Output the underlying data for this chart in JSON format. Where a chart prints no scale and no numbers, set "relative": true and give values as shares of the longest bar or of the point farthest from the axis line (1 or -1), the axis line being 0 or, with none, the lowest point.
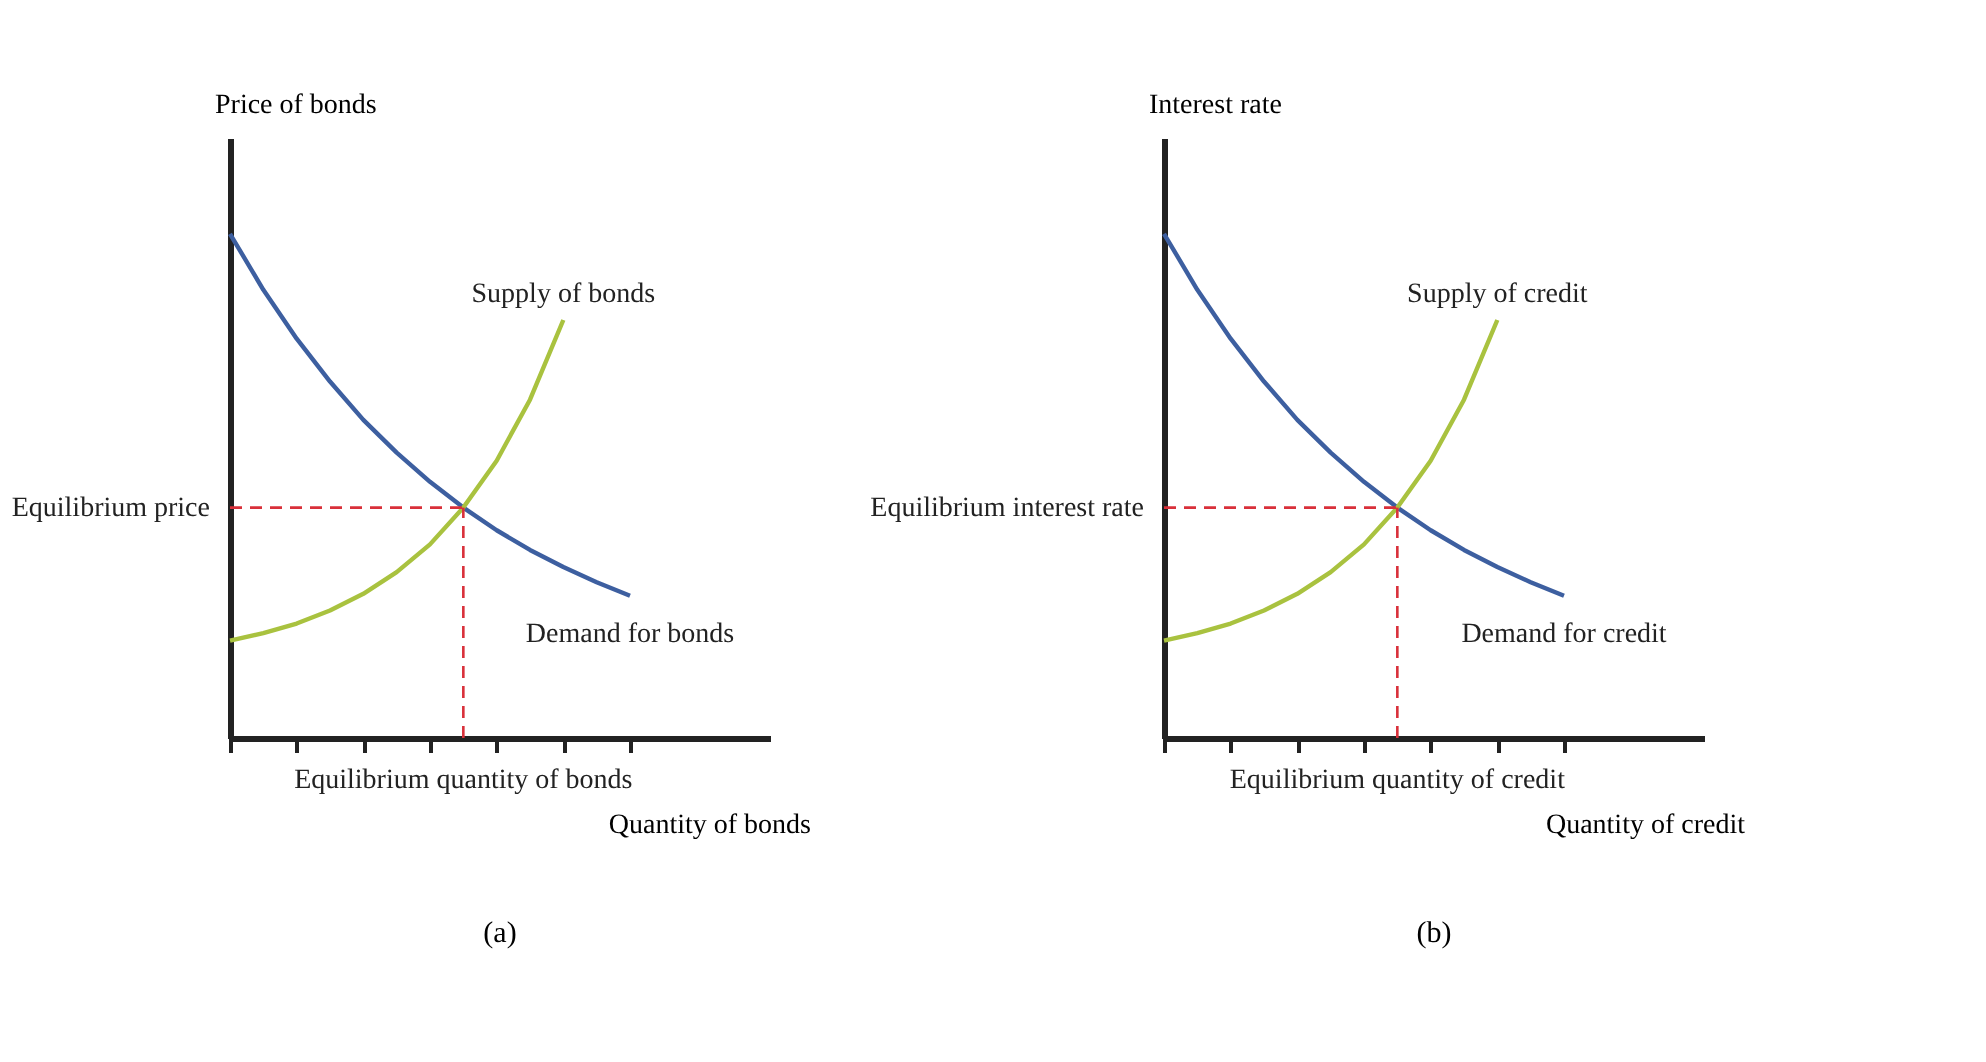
{
  "chart_data": [
    {
      "type": "line",
      "title": "(a)",
      "xlabel": "Quantity of bonds",
      "ylabel": "Price of bonds",
      "relative": true,
      "marker": "none",
      "categories": [
        null,
        null,
        null,
        null,
        null,
        null,
        null,
        null,
        null,
        null,
        null,
        null,
        null
      ],
      "series": [
        {
          "name": "Demand for bonds",
          "color": "#3d5fa0",
          "values": [
            1,
            0.889,
            0.792,
            0.707,
            0.631,
            0.566,
            0.508,
            0.457,
            0.412,
            0.373,
            0.339,
            0.309,
            0.282
          ]
        },
        {
          "name": "Supply of bonds",
          "color": "#a9c23f",
          "values": [
            0.193,
            0.208,
            0.227,
            0.253,
            0.286,
            0.329,
            0.384,
            0.457,
            0.55,
            0.671,
            0.829,
            null,
            null
          ]
        }
      ],
      "ref_lines": [
        {
          "axis": "y",
          "value": 0.457,
          "label": "Equilibrium price",
          "color": "#d9303a",
          "line_style": "dashed"
        }
      ],
      "annotations": [
        "Equilibrium quantity of bonds"
      ]
    },
    {
      "type": "line",
      "title": "(b)",
      "xlabel": "Quantity of credit",
      "ylabel": "Interest rate",
      "relative": true,
      "marker": "none",
      "categories": [
        null,
        null,
        null,
        null,
        null,
        null,
        null,
        null,
        null,
        null,
        null,
        null,
        null
      ],
      "series": [
        {
          "name": "Demand for credit",
          "color": "#3d5fa0",
          "values": [
            1,
            0.889,
            0.792,
            0.707,
            0.631,
            0.566,
            0.508,
            0.457,
            0.412,
            0.373,
            0.339,
            0.309,
            0.282
          ]
        },
        {
          "name": "Supply of credit",
          "color": "#a9c23f",
          "values": [
            0.193,
            0.208,
            0.227,
            0.253,
            0.286,
            0.329,
            0.384,
            0.457,
            0.55,
            0.671,
            0.829,
            null,
            null
          ]
        }
      ],
      "ref_lines": [
        {
          "axis": "y",
          "value": 0.457,
          "label": "Equilibrium interest rate",
          "color": "#d9303a",
          "line_style": "dashed"
        }
      ],
      "annotations": [
        "Equilibrium quantity of credit"
      ]
    }
  ]
}
